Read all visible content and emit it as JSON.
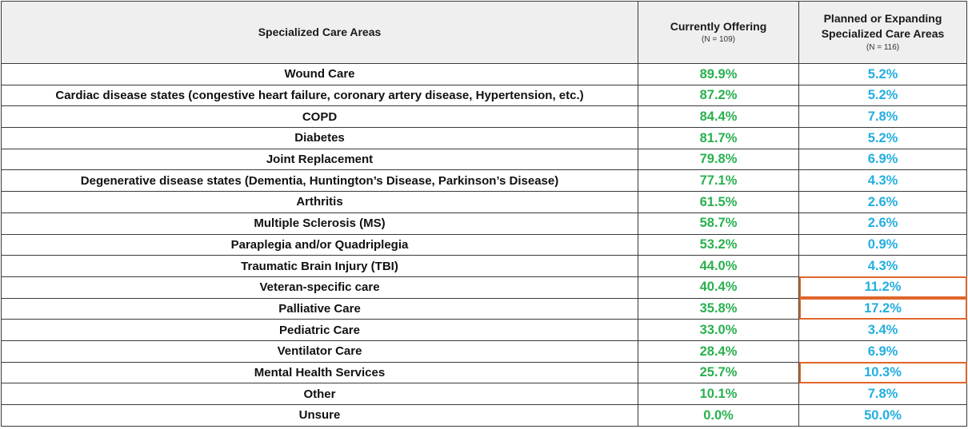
{
  "chart_data": {
    "type": "table",
    "columns": [
      {
        "label": "Specialized Care Areas",
        "note": ""
      },
      {
        "label": "Currently Offering",
        "note": "(N = 109)"
      },
      {
        "label_lines": [
          "Planned or Expanding",
          "Specialized Care Areas"
        ],
        "note": "(N = 116)"
      }
    ],
    "rows": [
      {
        "area": "Wound Care",
        "current": "89.9%",
        "planned": "5.2%",
        "highlight": false
      },
      {
        "area": "Cardiac disease states (congestive heart failure, coronary artery disease, Hypertension, etc.)",
        "current": "87.2%",
        "planned": "5.2%",
        "highlight": false
      },
      {
        "area": "COPD",
        "current": "84.4%",
        "planned": "7.8%",
        "highlight": false
      },
      {
        "area": "Diabetes",
        "current": "81.7%",
        "planned": "5.2%",
        "highlight": false
      },
      {
        "area": "Joint Replacement",
        "current": "79.8%",
        "planned": "6.9%",
        "highlight": false
      },
      {
        "area": "Degenerative disease states (Dementia, Huntington’s Disease, Parkinson’s Disease)",
        "current": "77.1%",
        "planned": "4.3%",
        "highlight": false
      },
      {
        "area": "Arthritis",
        "current": "61.5%",
        "planned": "2.6%",
        "highlight": false
      },
      {
        "area": "Multiple Sclerosis (MS)",
        "current": "58.7%",
        "planned": "2.6%",
        "highlight": false
      },
      {
        "area": "Paraplegia and/or Quadriplegia",
        "current": "53.2%",
        "planned": "0.9%",
        "highlight": false
      },
      {
        "area": "Traumatic Brain Injury (TBI)",
        "current": "44.0%",
        "planned": "4.3%",
        "highlight": false
      },
      {
        "area": "Veteran-specific care",
        "current": "40.4%",
        "planned": "11.2%",
        "highlight": true
      },
      {
        "area": "Palliative Care",
        "current": "35.8%",
        "planned": "17.2%",
        "highlight": true
      },
      {
        "area": "Pediatric Care",
        "current": "33.0%",
        "planned": "3.4%",
        "highlight": false
      },
      {
        "area": "Ventilator Care",
        "current": "28.4%",
        "planned": "6.9%",
        "highlight": false
      },
      {
        "area": "Mental Health Services",
        "current": "25.7%",
        "planned": "10.3%",
        "highlight": true
      },
      {
        "area": "Other",
        "current": "10.1%",
        "planned": "7.8%",
        "highlight": false
      },
      {
        "area": "Unsure",
        "current": "0.0%",
        "planned": "50.0%",
        "highlight": false
      }
    ],
    "colors": {
      "current": "#2ab04f",
      "planned": "#22aee0",
      "highlight_border": "#e0652b",
      "header_bg": "#efefef"
    }
  }
}
